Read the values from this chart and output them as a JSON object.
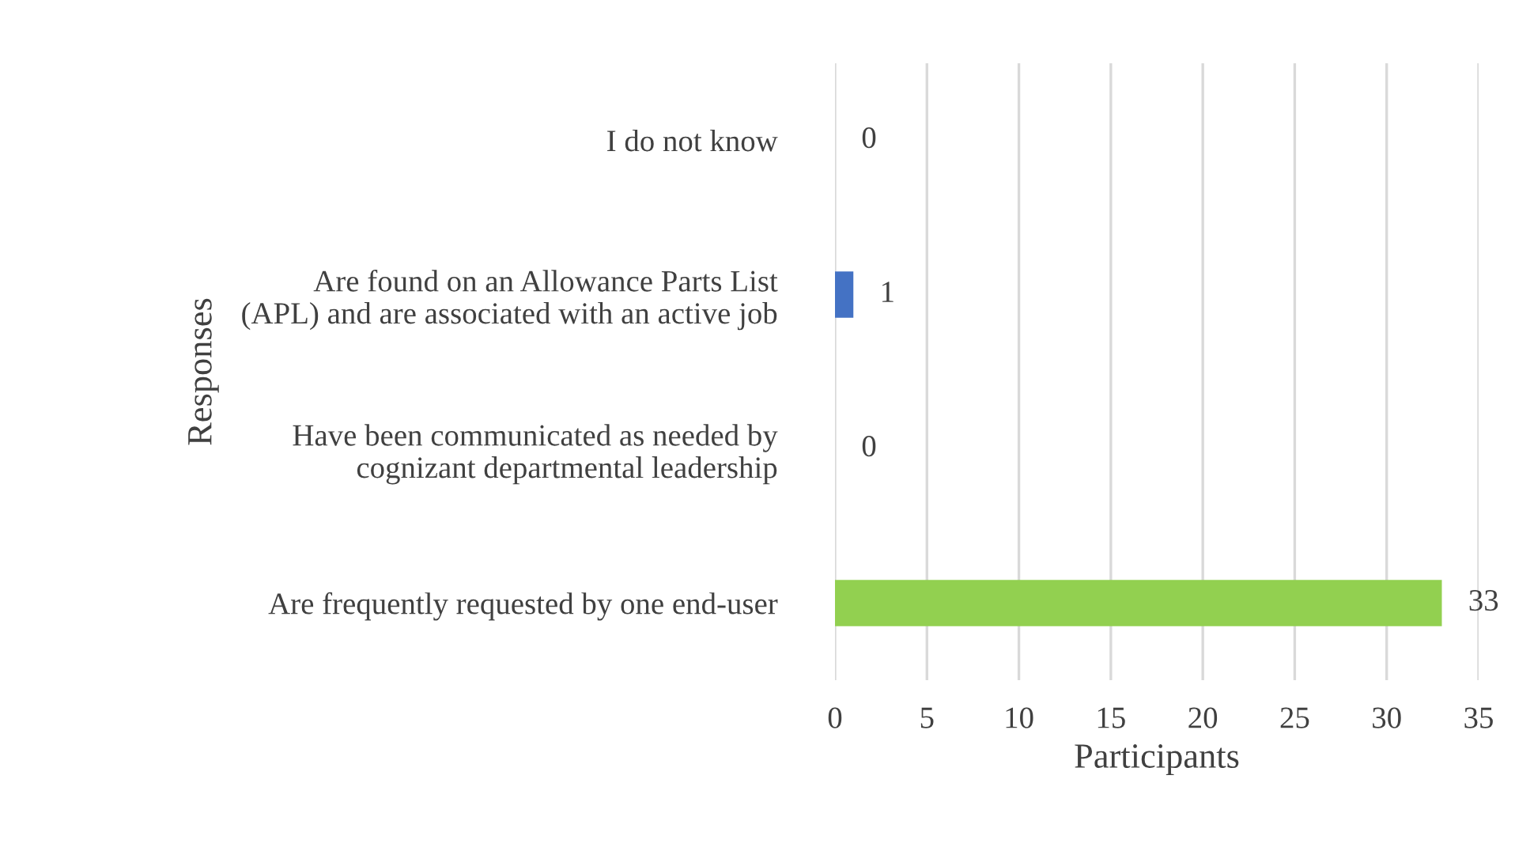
{
  "chart_data": {
    "type": "bar",
    "orientation": "horizontal",
    "xlabel": "Participants",
    "ylabel": "Responses",
    "categories": [
      "I do not know",
      "Are found on an Allowance Parts List\n(APL) and are associated with an active job",
      "Have been communicated as needed by\ncognizant departmental leadership",
      "Are frequently requested by one end-user"
    ],
    "values": [
      0,
      1,
      0,
      33
    ],
    "colors": [
      "#4472c4",
      "#4472c4",
      "#4472c4",
      "#92d050"
    ],
    "xlim": [
      0,
      35
    ],
    "xticks": [
      0,
      5,
      10,
      15,
      20,
      25,
      30,
      35
    ],
    "grid": "x",
    "data_labels": true
  }
}
